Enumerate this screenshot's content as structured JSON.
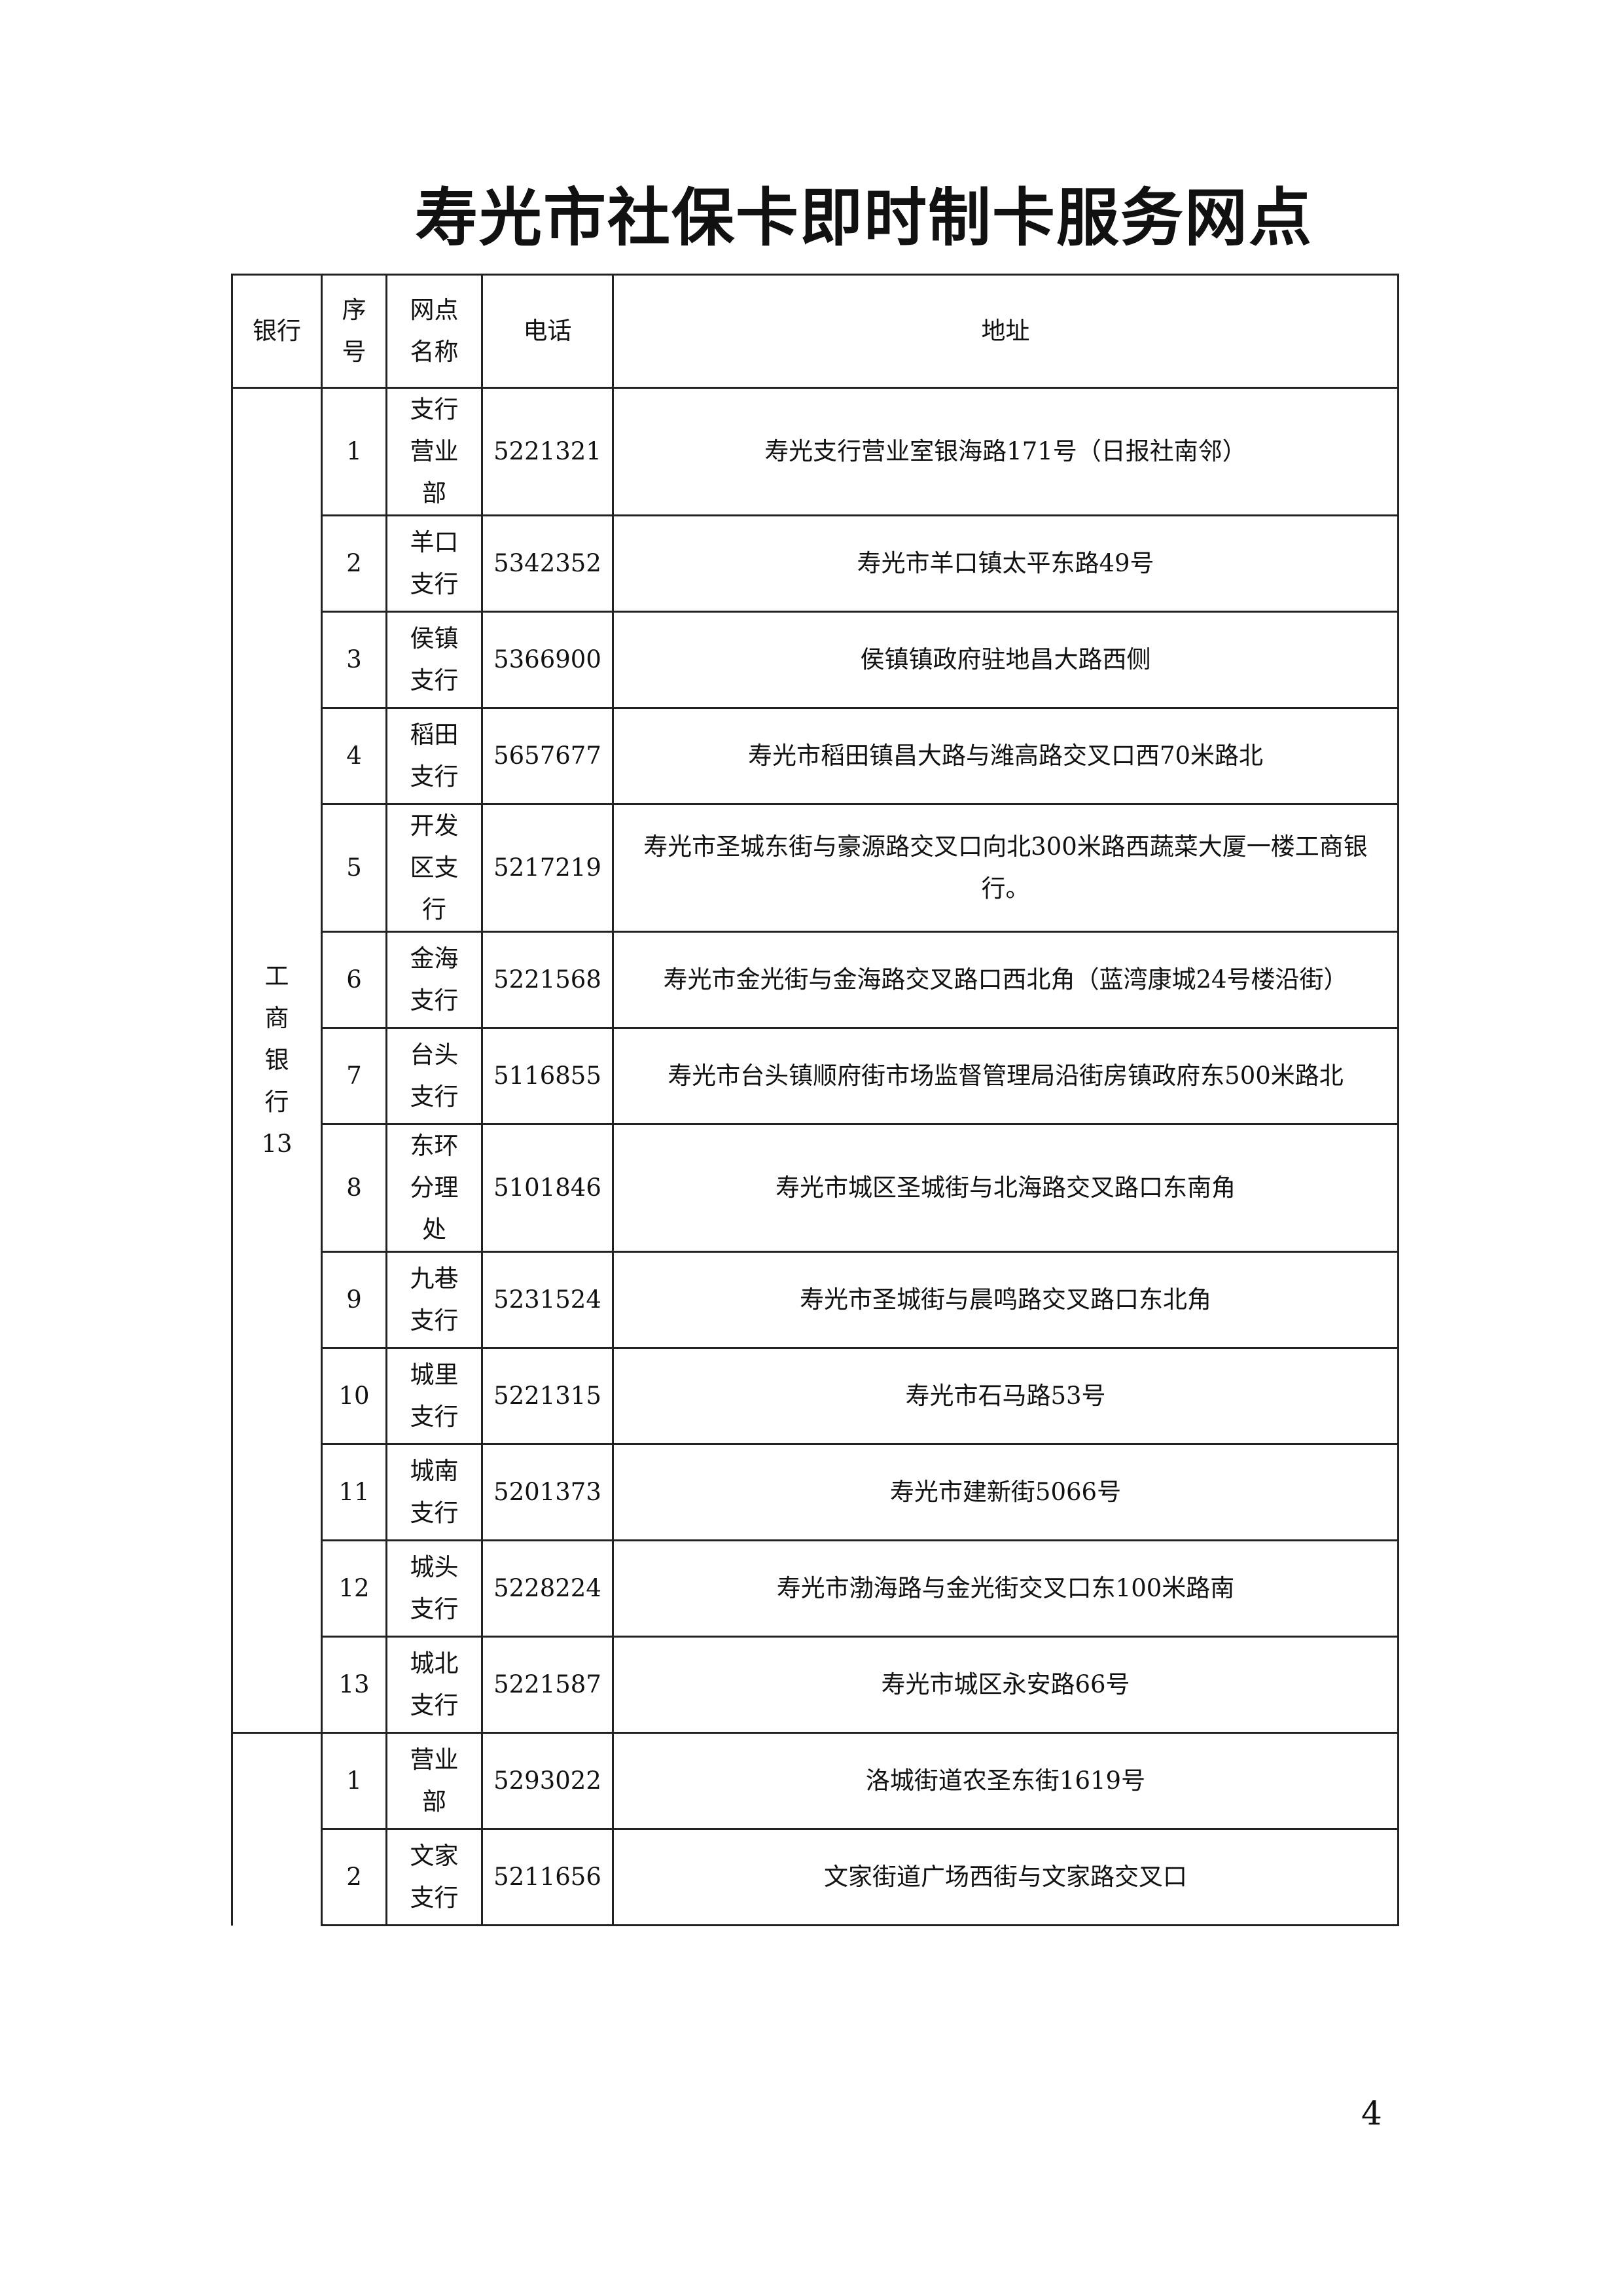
{
  "title": "寿光市社保卡即时制卡服务网点",
  "headers": {
    "bank": "银行",
    "index": "序号",
    "name": "网点名称",
    "phone": "电话",
    "address": "地址"
  },
  "groups": [
    {
      "bank": "工商银行13",
      "rows": [
        {
          "index": "1",
          "name": "支行营业部",
          "phone": "5221321",
          "address": "寿光支行营业室银海路171号（日报社南邻）"
        },
        {
          "index": "2",
          "name": "羊口支行",
          "phone": "5342352",
          "address": "寿光市羊口镇太平东路49号"
        },
        {
          "index": "3",
          "name": "侯镇支行",
          "phone": "5366900",
          "address": "侯镇镇政府驻地昌大路西侧"
        },
        {
          "index": "4",
          "name": "稻田支行",
          "phone": "5657677",
          "address": "寿光市稻田镇昌大路与潍高路交叉口西70米路北"
        },
        {
          "index": "5",
          "name": "开发区支行",
          "phone": "5217219",
          "address": "寿光市圣城东街与豪源路交叉口向北300米路西蔬菜大厦一楼工商银行。"
        },
        {
          "index": "6",
          "name": "金海支行",
          "phone": "5221568",
          "address": "寿光市金光街与金海路交叉路口西北角（蓝湾康城24号楼沿街）"
        },
        {
          "index": "7",
          "name": "台头支行",
          "phone": "5116855",
          "address": "寿光市台头镇顺府街市场监督管理局沿街房镇政府东500米路北"
        },
        {
          "index": "8",
          "name": "东环分理处",
          "phone": "5101846",
          "address": "寿光市城区圣城街与北海路交叉路口东南角"
        },
        {
          "index": "9",
          "name": "九巷支行",
          "phone": "5231524",
          "address": "寿光市圣城街与晨鸣路交叉路口东北角"
        },
        {
          "index": "10",
          "name": "城里支行",
          "phone": "5221315",
          "address": "寿光市石马路53号"
        },
        {
          "index": "11",
          "name": "城南支行",
          "phone": "5201373",
          "address": "寿光市建新街5066号"
        },
        {
          "index": "12",
          "name": "城头支行",
          "phone": "5228224",
          "address": "寿光市渤海路与金光街交叉口东100米路南"
        },
        {
          "index": "13",
          "name": "城北支行",
          "phone": "5221587",
          "address": "寿光市城区永安路66号"
        }
      ]
    },
    {
      "bank": "",
      "rows": [
        {
          "index": "1",
          "name": "营业部",
          "phone": "5293022",
          "address": "洛城街道农圣东街1619号"
        },
        {
          "index": "2",
          "name": "文家支行",
          "phone": "5211656",
          "address": "文家街道广场西街与文家路交叉口"
        }
      ]
    }
  ],
  "page_number": "4"
}
